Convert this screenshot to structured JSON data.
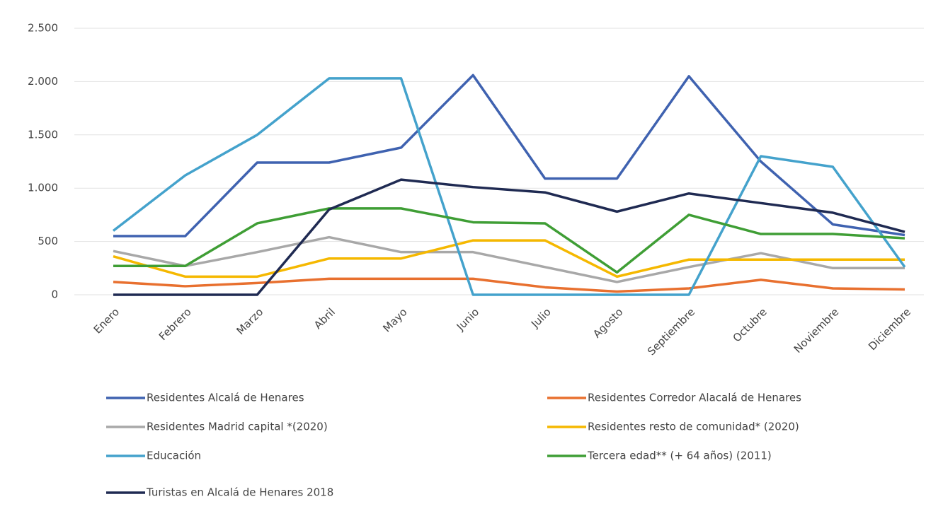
{
  "chart_data": {
    "type": "line",
    "categories": [
      "Enero",
      "Febrero",
      "Marzo",
      "Abril",
      "Mayo",
      "Junio",
      "Julio",
      "Agosto",
      "Septiembre",
      "Octubre",
      "Noviembre",
      "Diciembre"
    ],
    "series": [
      {
        "name": "Residentes Alcalá de Henares",
        "color": "#3f62b0",
        "values": [
          550,
          550,
          1240,
          1240,
          1380,
          2060,
          1090,
          1090,
          2050,
          1250,
          660,
          560
        ]
      },
      {
        "name": "Residentes Corredor Alacalá de Henares",
        "color": "#e8702f",
        "values": [
          120,
          80,
          110,
          150,
          150,
          150,
          70,
          30,
          60,
          140,
          60,
          50
        ]
      },
      {
        "name": "Residentes Madrid capital *(2020)",
        "color": "#a8a8a8",
        "values": [
          410,
          270,
          400,
          540,
          400,
          400,
          260,
          120,
          260,
          390,
          250,
          250
        ]
      },
      {
        "name": "Residentes resto de comunidad* (2020)",
        "color": "#f5b800",
        "values": [
          360,
          170,
          170,
          340,
          340,
          510,
          510,
          170,
          330,
          330,
          330,
          330
        ]
      },
      {
        "name": "Educación",
        "color": "#44a2cc",
        "values": [
          600,
          1120,
          1500,
          2030,
          2030,
          0,
          0,
          0,
          0,
          1300,
          1200,
          260
        ]
      },
      {
        "name": "Tercera edad** (+ 64 años)  (2011)",
        "color": "#3f9e35",
        "values": [
          270,
          270,
          670,
          810,
          810,
          680,
          670,
          210,
          750,
          570,
          570,
          530
        ]
      },
      {
        "name": "Turistas en Alcalá de Henares 2018",
        "color": "#1f2a52",
        "values": [
          0,
          0,
          0,
          800,
          1080,
          1010,
          960,
          780,
          950,
          860,
          770,
          590
        ]
      }
    ],
    "ylim": [
      0,
      2500
    ],
    "yticks": [
      0,
      500,
      {
        "value": 1000,
        "label": "1.000"
      },
      {
        "value": 1500,
        "label": "1.500"
      },
      {
        "value": 2000,
        "label": "2.000"
      },
      {
        "value": 2500,
        "label": "2.500"
      }
    ],
    "grid": true
  }
}
